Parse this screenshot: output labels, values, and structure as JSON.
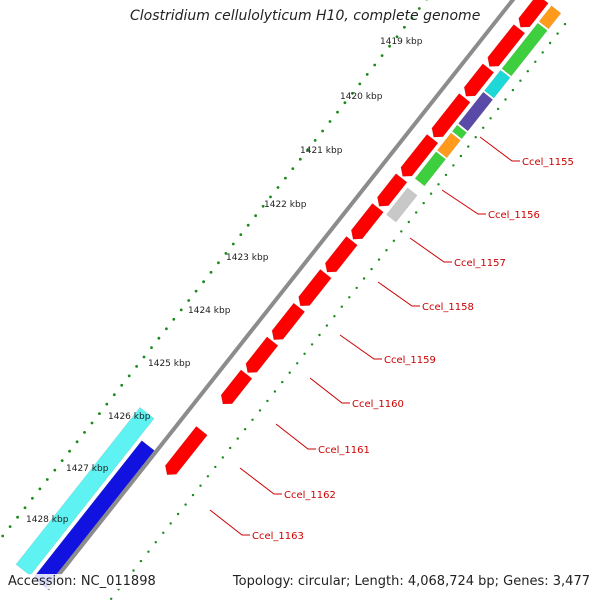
{
  "title": "Clostridium cellulolyticum H10, complete genome",
  "footer": {
    "accession_label": "Accession: NC_011898",
    "summary": "Topology: circular; Length: 4,068,724 bp; Genes: 3,477"
  },
  "ruler": {
    "unit": "kbp",
    "ticks": [
      "1419 kbp",
      "1420 kbp",
      "1421 kbp",
      "1422 kbp",
      "1423 kbp",
      "1424 kbp",
      "1425 kbp",
      "1426 kbp",
      "1427 kbp",
      "1428 kbp"
    ]
  },
  "gene_labels": [
    "Ccel_1155",
    "Ccel_1156",
    "Ccel_1157",
    "Ccel_1158",
    "Ccel_1159",
    "Ccel_1160",
    "Ccel_1161",
    "Ccel_1162",
    "Ccel_1163"
  ],
  "colors": {
    "backbone": "#8c8c8c",
    "cds_forward": "#ff0000",
    "cds_reverse": "#ff0000",
    "cog_green": "#3ecf3e",
    "cog_cyan": "#1ed8d8",
    "cog_purple": "#5a4aa8",
    "cog_orange": "#ff9a1a",
    "cog_grey": "#c8c8c8",
    "cog_blue": "#1212e0",
    "cog_light_cyan": "#5ef2f2",
    "gc_dots": "#1a8a1a",
    "label_text": "#cc0000",
    "label_line": "#cc0000"
  }
}
